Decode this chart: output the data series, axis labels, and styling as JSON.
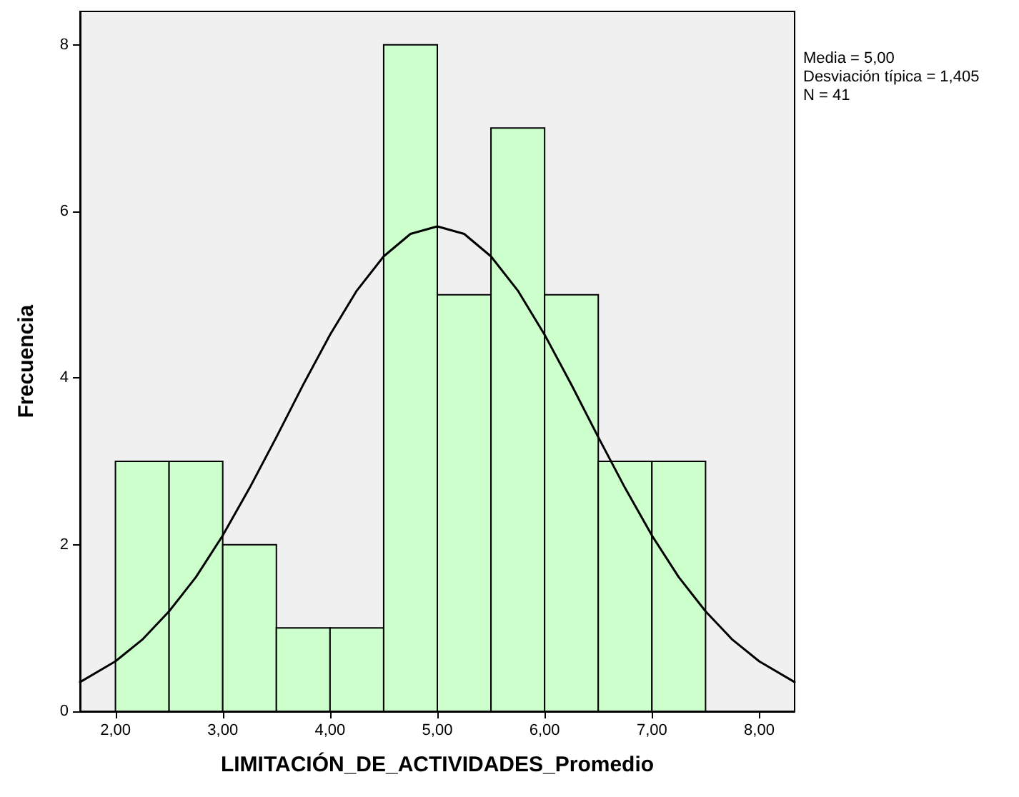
{
  "chart_data": {
    "type": "histogram",
    "xlabel": "LIMITACIÓN_DE_ACTIVIDADES_Promedio",
    "ylabel": "Frecuencia",
    "bins": [
      2.0,
      2.5,
      3.0,
      3.5,
      4.0,
      4.5,
      5.0,
      5.5,
      6.0,
      6.5,
      7.0,
      7.5
    ],
    "values": [
      3,
      3,
      2,
      1,
      1,
      8,
      5,
      7,
      5,
      3,
      3
    ],
    "color": "#ccffcc",
    "series": [
      {
        "type": "line",
        "color": "#000000",
        "x": [
          1.67,
          2.0,
          2.25,
          2.5,
          2.75,
          3.0,
          3.25,
          3.5,
          3.75,
          4.0,
          4.25,
          4.5,
          4.75,
          5.0,
          5.25,
          5.5,
          5.75,
          6.0,
          6.25,
          6.5,
          6.75,
          7.0,
          7.25,
          7.5,
          7.75,
          8.0,
          8.33
        ],
        "values": [
          0.35,
          0.6,
          0.86,
          1.2,
          1.61,
          2.11,
          2.68,
          3.29,
          3.92,
          4.52,
          5.05,
          5.46,
          5.73,
          5.82,
          5.73,
          5.46,
          5.05,
          4.52,
          3.92,
          3.29,
          2.68,
          2.11,
          1.61,
          1.2,
          0.86,
          0.6,
          0.35
        ]
      }
    ],
    "xlim": [
      1.67,
      8.33
    ],
    "ylim": [
      0,
      8.4
    ],
    "xticks": [
      {
        "value": 2,
        "label": "2,00"
      },
      {
        "value": 3,
        "label": "3,00"
      },
      {
        "value": 4,
        "label": "4,00"
      },
      {
        "value": 5,
        "label": "5,00"
      },
      {
        "value": 6,
        "label": "6,00"
      },
      {
        "value": 7,
        "label": "7,00"
      },
      {
        "value": 8,
        "label": "8,00"
      }
    ],
    "yticks": [
      0,
      2,
      4,
      6,
      8
    ],
    "grid": false,
    "marker": "none",
    "line_style": "solid",
    "annotations": [
      "Media = 5,00",
      "Desviación típica = 1,405",
      "N = 41"
    ]
  }
}
